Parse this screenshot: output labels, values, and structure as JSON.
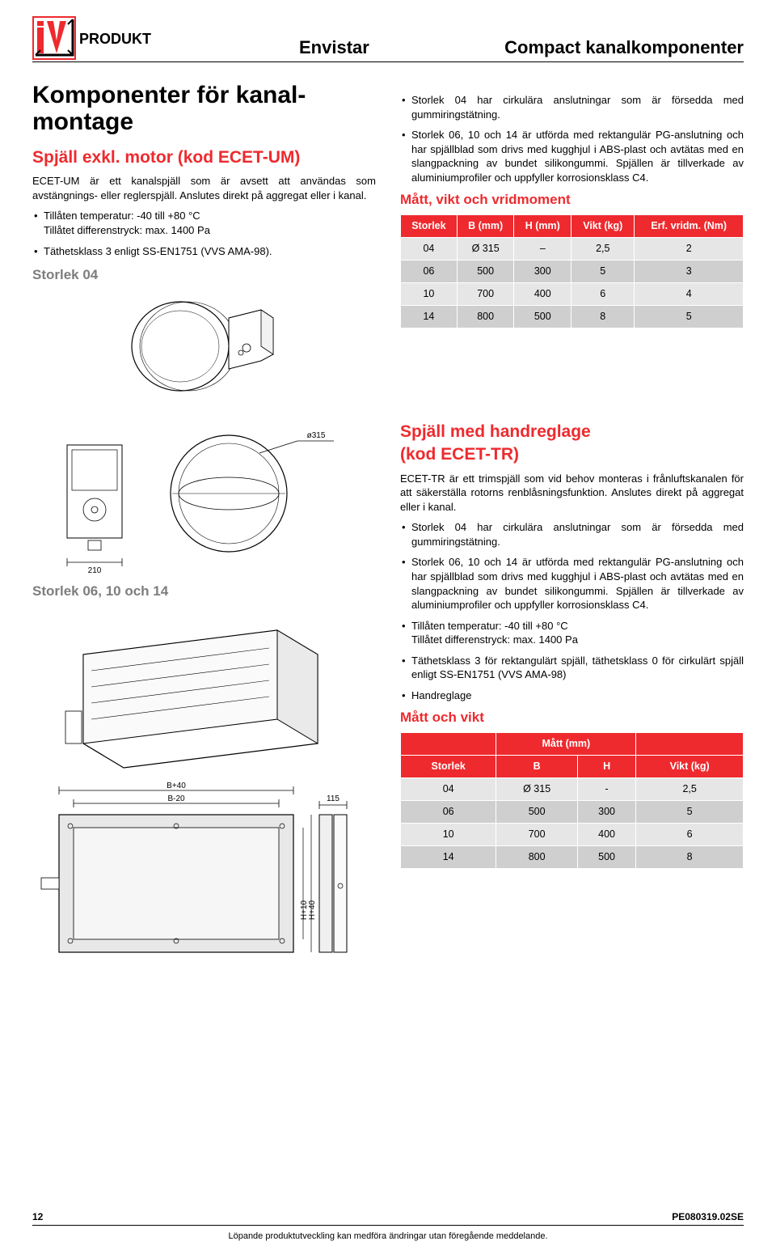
{
  "header": {
    "title_left": "Envistar",
    "title_right": "Compact kanalkomponenter"
  },
  "main_heading": "Komponenter för kanal-\nmontage",
  "section1": {
    "heading": "Spjäll exkl. motor (kod ECET-UM)",
    "intro": "ECET-UM är ett kanalspjäll som är avsett att användas som avstängnings- eller reglerspjäll. Anslutes direkt på aggregat eller i kanal.",
    "bullets": [
      "Tillåten temperatur: -40 till +80 °C\nTillåtet differenstryck: max. 1400 Pa",
      "Täthetsklass 3 enligt SS-EN1751 (VVS AMA-98)."
    ],
    "sub_heading_04": "Storlek 04",
    "sub_heading_061014": "Storlek 06, 10 och 14"
  },
  "right_top": {
    "bullets": [
      "Storlek 04 har cirkulära anslutningar som är försedda med gummiringstätning.",
      "Storlek 06, 10 och 14 är utförda med rektangulär PG-anslutning och har spjällblad som drivs med kugghjul i ABS-plast och avtätas med en slangpackning av bundet silikongummi. Spjällen är tillverkade av aluminiumprofiler och uppfyller korrosionsklass C4."
    ],
    "table_heading": "Mått, vikt och vridmoment",
    "table1": {
      "cols": [
        "Storlek",
        "B (mm)",
        "H (mm)",
        "Vikt (kg)",
        "Erf. vridm. (Nm)"
      ],
      "rows": [
        [
          "04",
          "Ø 315",
          "–",
          "2,5",
          "2"
        ],
        [
          "06",
          "500",
          "300",
          "5",
          "3"
        ],
        [
          "10",
          "700",
          "400",
          "6",
          "4"
        ],
        [
          "14",
          "800",
          "500",
          "8",
          "5"
        ]
      ]
    }
  },
  "section2": {
    "heading_l1": "Spjäll med handreglage",
    "heading_l2": "(kod ECET-TR)",
    "intro": "ECET-TR är ett trimspjäll som vid behov monteras i frånluftskanalen för att säkerställa rotorns renblåsningsfunktion. Anslutes direkt på aggregat eller i kanal.",
    "bullets": [
      "Storlek 04 har cirkulära anslutningar som är försedda med gummiringstätning.",
      "Storlek 06, 10 och 14 är utförda med rektangulär PG-anslutning och har spjällblad som drivs med kugghjul i ABS-plast och avtätas med en slangpackning av bundet silikongummi. Spjällen är tillverkade av aluminiumprofiler och uppfyller korrosionsklass C4.",
      "Tillåten temperatur: -40 till +80 °C\nTillåtet differenstryck: max. 1400 Pa",
      "Täthetsklass 3 för rektangulärt spjäll, täthetsklass 0 för cirkulärt spjäll enligt SS-EN1751 (VVS AMA-98)",
      "Handreglage"
    ],
    "table_heading": "Mått och vikt",
    "table2": {
      "top_group": "Mått (mm)",
      "cols": [
        "Storlek",
        "B",
        "H",
        "Vikt (kg)"
      ],
      "rows": [
        [
          "04",
          "Ø 315",
          "-",
          "2,5"
        ],
        [
          "06",
          "500",
          "300",
          "5"
        ],
        [
          "10",
          "700",
          "400",
          "6"
        ],
        [
          "14",
          "800",
          "500",
          "8"
        ]
      ]
    }
  },
  "dims": {
    "d210": "210",
    "d_o315": "ø315",
    "b40": "B+40",
    "b20": "B-20",
    "d115": "115",
    "h10": "H+10",
    "h40": "H+40"
  },
  "footer": {
    "page": "12",
    "code": "PE080319.02SE",
    "note": "Löpande produktutveckling kan medföra ändringar utan föregående meddelande."
  },
  "colors": {
    "brand_red": "#ee2a2e",
    "row_light": "#e6e6e6",
    "row_dark": "#cfcfcf"
  }
}
